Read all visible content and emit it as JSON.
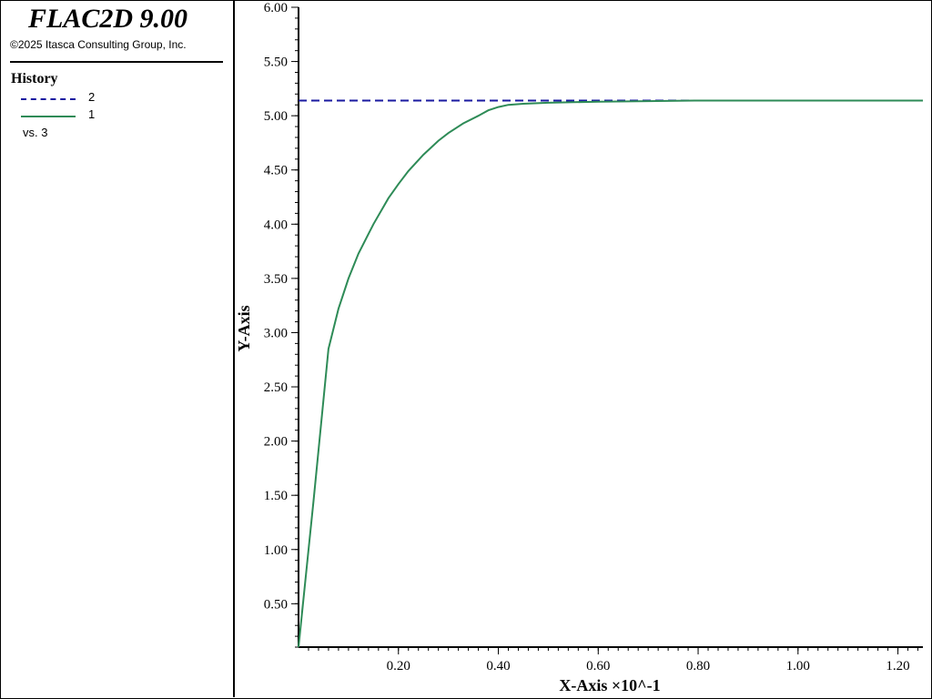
{
  "header": {
    "app_title": "FLAC2D 9.00",
    "copyright": "©2025 Itasca Consulting Group, Inc."
  },
  "legend": {
    "title": "History",
    "items": [
      {
        "label": "2",
        "style": "dashed",
        "color": "#1a1aa0"
      },
      {
        "label": "1",
        "style": "solid",
        "color": "#2e8b57"
      }
    ],
    "vs": "vs. 3"
  },
  "chart_data": {
    "type": "line",
    "xlabel": "X-Axis ×10^-1",
    "ylabel": "Y-Axis",
    "xlim": [
      0.0,
      1.25
    ],
    "ylim": [
      0.1,
      6.0
    ],
    "x_ticks": [
      0.2,
      0.4,
      0.6,
      0.8,
      1.0,
      1.2
    ],
    "x_tick_labels": [
      "0.20",
      "0.40",
      "0.60",
      "0.80",
      "1.00",
      "1.20"
    ],
    "y_ticks": [
      0.5,
      1.0,
      1.5,
      2.0,
      2.5,
      3.0,
      3.5,
      4.0,
      4.5,
      5.0,
      5.5,
      6.0
    ],
    "y_tick_labels": [
      "0.50",
      "1.00",
      "1.50",
      "2.00",
      "2.50",
      "3.00",
      "3.50",
      "4.00",
      "4.50",
      "5.00",
      "5.50",
      "6.00"
    ],
    "grid": false,
    "series": [
      {
        "name": "2",
        "color": "#1a1aa0",
        "dash": true,
        "x": [
          0.0,
          1.25
        ],
        "y": [
          5.14,
          5.14
        ]
      },
      {
        "name": "1",
        "color": "#2e8b57",
        "dash": false,
        "x": [
          0.0,
          0.03,
          0.06,
          0.08,
          0.1,
          0.12,
          0.15,
          0.18,
          0.2,
          0.22,
          0.25,
          0.28,
          0.3,
          0.33,
          0.36,
          0.38,
          0.4,
          0.42,
          0.45,
          0.5,
          0.6,
          0.7,
          0.8,
          1.0,
          1.25
        ],
        "y": [
          0.1,
          1.45,
          2.85,
          3.22,
          3.5,
          3.73,
          4.0,
          4.24,
          4.37,
          4.49,
          4.64,
          4.77,
          4.84,
          4.93,
          5.0,
          5.05,
          5.08,
          5.1,
          5.11,
          5.12,
          5.13,
          5.135,
          5.14,
          5.14,
          5.14
        ]
      }
    ]
  }
}
